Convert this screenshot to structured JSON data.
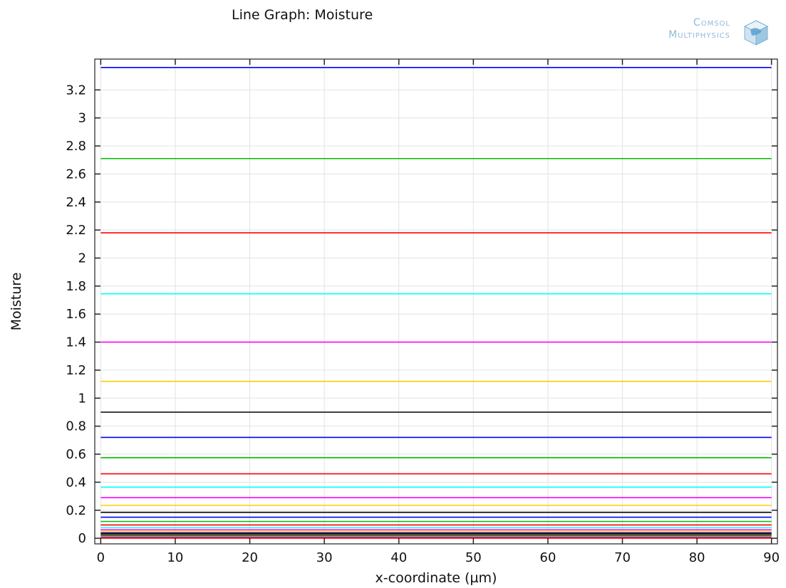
{
  "chart_data": {
    "type": "line",
    "title": "Line Graph: Moisture",
    "xlabel": "x-coordinate (µm)",
    "ylabel": "Moisture",
    "xlim": [
      -0.8,
      90.8
    ],
    "ylim": [
      -0.04,
      3.42
    ],
    "x_ticks": [
      0,
      10,
      20,
      30,
      40,
      50,
      60,
      70,
      80,
      90
    ],
    "x_tick_labels": [
      "0",
      "10",
      "20",
      "30",
      "40",
      "50",
      "60",
      "70",
      "80",
      "90"
    ],
    "y_ticks": [
      0,
      0.2,
      0.4,
      0.6,
      0.8,
      1,
      1.2,
      1.4,
      1.6,
      1.8,
      2,
      2.2,
      2.4,
      2.6,
      2.8,
      3,
      3.2
    ],
    "y_tick_labels": [
      "0",
      "0.2",
      "0.4",
      "0.6",
      "0.8",
      "1",
      "1.2",
      "1.4",
      "1.6",
      "1.8",
      "2",
      "2.2",
      "2.4",
      "2.6",
      "2.8",
      "3",
      "3.2"
    ],
    "grid": true,
    "x": [
      0,
      90
    ],
    "series": [
      {
        "color": "#0000ff",
        "values": [
          3.36,
          3.36
        ]
      },
      {
        "color": "#00bb00",
        "values": [
          2.71,
          2.71
        ]
      },
      {
        "color": "#ff0000",
        "values": [
          2.18,
          2.18
        ]
      },
      {
        "color": "#00ffff",
        "values": [
          1.745,
          1.745
        ]
      },
      {
        "color": "#ff00ff",
        "values": [
          1.4,
          1.4
        ]
      },
      {
        "color": "#ffcc00",
        "values": [
          1.12,
          1.12
        ]
      },
      {
        "color": "#000000",
        "values": [
          0.9,
          0.9
        ]
      },
      {
        "color": "#0000ff",
        "values": [
          0.72,
          0.72
        ]
      },
      {
        "color": "#00bb00",
        "values": [
          0.575,
          0.575
        ]
      },
      {
        "color": "#ff0000",
        "values": [
          0.46,
          0.46
        ]
      },
      {
        "color": "#00ffff",
        "values": [
          0.365,
          0.365
        ]
      },
      {
        "color": "#ff00ff",
        "values": [
          0.29,
          0.29
        ]
      },
      {
        "color": "#ffcc00",
        "values": [
          0.235,
          0.235
        ]
      },
      {
        "color": "#000000",
        "values": [
          0.185,
          0.185
        ]
      },
      {
        "color": "#0000ff",
        "values": [
          0.15,
          0.15
        ]
      },
      {
        "color": "#00bb00",
        "values": [
          0.12,
          0.12
        ]
      },
      {
        "color": "#ff0000",
        "values": [
          0.095,
          0.095
        ]
      },
      {
        "color": "#00ffff",
        "values": [
          0.075,
          0.075
        ]
      },
      {
        "color": "#ff00ff",
        "values": [
          0.06,
          0.06
        ]
      },
      {
        "color": "#ffcc00",
        "values": [
          0.048,
          0.048
        ]
      },
      {
        "color": "#000000",
        "values": [
          0.038,
          0.038
        ]
      },
      {
        "color": "#0000ff",
        "values": [
          0.03,
          0.03
        ]
      },
      {
        "color": "#00bb00",
        "values": [
          0.023,
          0.023
        ]
      },
      {
        "color": "#ff0000",
        "values": [
          0.017,
          0.017
        ]
      },
      {
        "color": "#00ffff",
        "values": [
          0.012,
          0.012
        ]
      },
      {
        "color": "#ff00ff",
        "values": [
          0.008,
          0.008
        ]
      },
      {
        "color": "#ffcc00",
        "values": [
          0.005,
          0.005
        ]
      },
      {
        "color": "#000000",
        "values": [
          0.003,
          0.003
        ]
      },
      {
        "color": "#ff0000",
        "values": [
          0.001,
          0.001
        ]
      }
    ]
  },
  "logo": {
    "line1": "Comsol",
    "line2": "Multiphysics",
    "icon": "comsol-cube-icon",
    "color": "#8fbad6"
  }
}
